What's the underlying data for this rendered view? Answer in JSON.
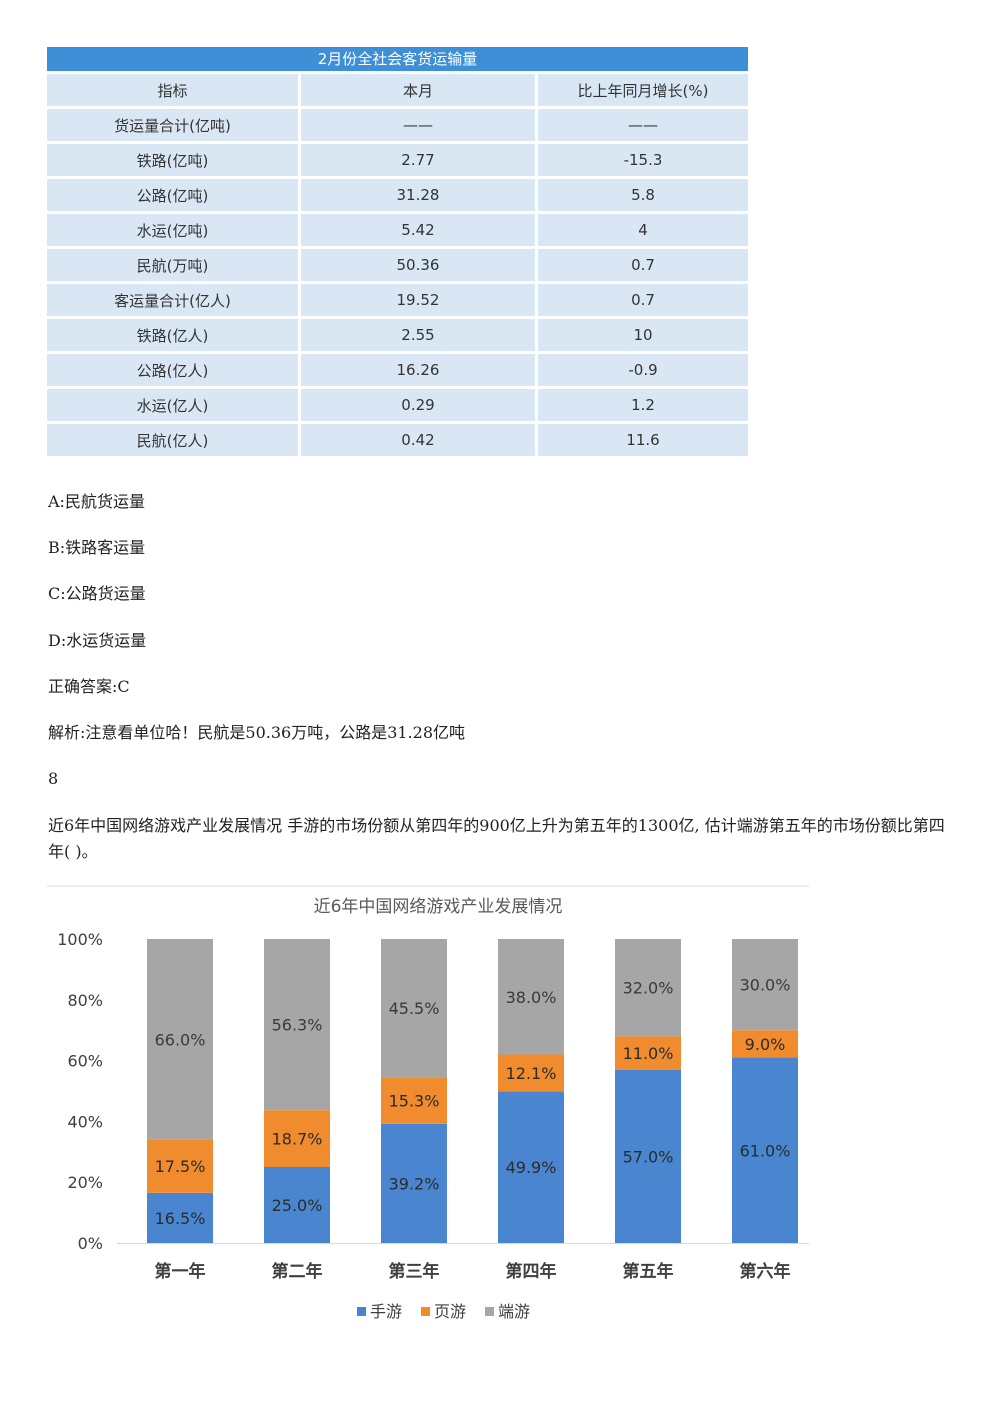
{
  "table": {
    "title": "2月份全社会客货运输量",
    "headers": [
      "指标",
      "本月",
      "比上年同月增长(%)"
    ],
    "rows": [
      [
        "货运量合计(亿吨)",
        "——",
        "——"
      ],
      [
        "铁路(亿吨)",
        "2.77",
        "-15.3"
      ],
      [
        "公路(亿吨)",
        "31.28",
        "5.8"
      ],
      [
        "水运(亿吨)",
        "5.42",
        "4"
      ],
      [
        "民航(万吨)",
        "50.36",
        "0.7"
      ],
      [
        "客运量合计(亿人)",
        "19.52",
        "0.7"
      ],
      [
        "铁路(亿人)",
        "2.55",
        "10"
      ],
      [
        "公路(亿人)",
        "16.26",
        "-0.9"
      ],
      [
        "水运(亿人)",
        "0.29",
        "1.2"
      ],
      [
        "民航(亿人)",
        "0.42",
        "11.6"
      ]
    ]
  },
  "options": {
    "a": "A:民航货运量",
    "b": "B:铁路客运量",
    "c": "C:公路货运量",
    "d": "D:水运货运量"
  },
  "answer": "正确答案:C",
  "explanation": "解析:注意看单位哈！民航是50.36万吨，公路是31.28亿吨",
  "question_number": "8",
  "question_text": "近6年中国网络游戏产业发展情况 手游的市场份额从第四年的900亿上升为第五年的1300亿, 估计端游第五年的市场份额比第四年( )。",
  "chart_data": {
    "type": "bar",
    "stacked": true,
    "title": "近6年中国网络游戏产业发展情况",
    "categories": [
      "第一年",
      "第二年",
      "第三年",
      "第四年",
      "第五年",
      "第六年"
    ],
    "series": [
      {
        "name": "手游",
        "color": "#4a86d0",
        "values": [
          16.5,
          25.0,
          39.2,
          49.9,
          57.0,
          61.0
        ],
        "labels": [
          "16.5%",
          "25.0%",
          "39.2%",
          "49.9%",
          "57.0%",
          "61.0%"
        ]
      },
      {
        "name": "页游",
        "color": "#f08c2d",
        "values": [
          17.5,
          18.7,
          15.3,
          12.1,
          11.0,
          9.0
        ],
        "labels": [
          "17.5%",
          "18.7%",
          "15.3%",
          "12.1%",
          "11.0%",
          "9.0%"
        ]
      },
      {
        "name": "端游",
        "color": "#a6a6a6",
        "values": [
          66.0,
          56.3,
          45.5,
          38.0,
          32.0,
          30.0
        ],
        "labels": [
          "66.0%",
          "56.3%",
          "45.5%",
          "38.0%",
          "32.0%",
          "30.0%"
        ]
      }
    ],
    "yticks": [
      "0%",
      "20%",
      "40%",
      "60%",
      "80%",
      "100%"
    ],
    "ylim": [
      0,
      100
    ],
    "legend": "bottom"
  }
}
